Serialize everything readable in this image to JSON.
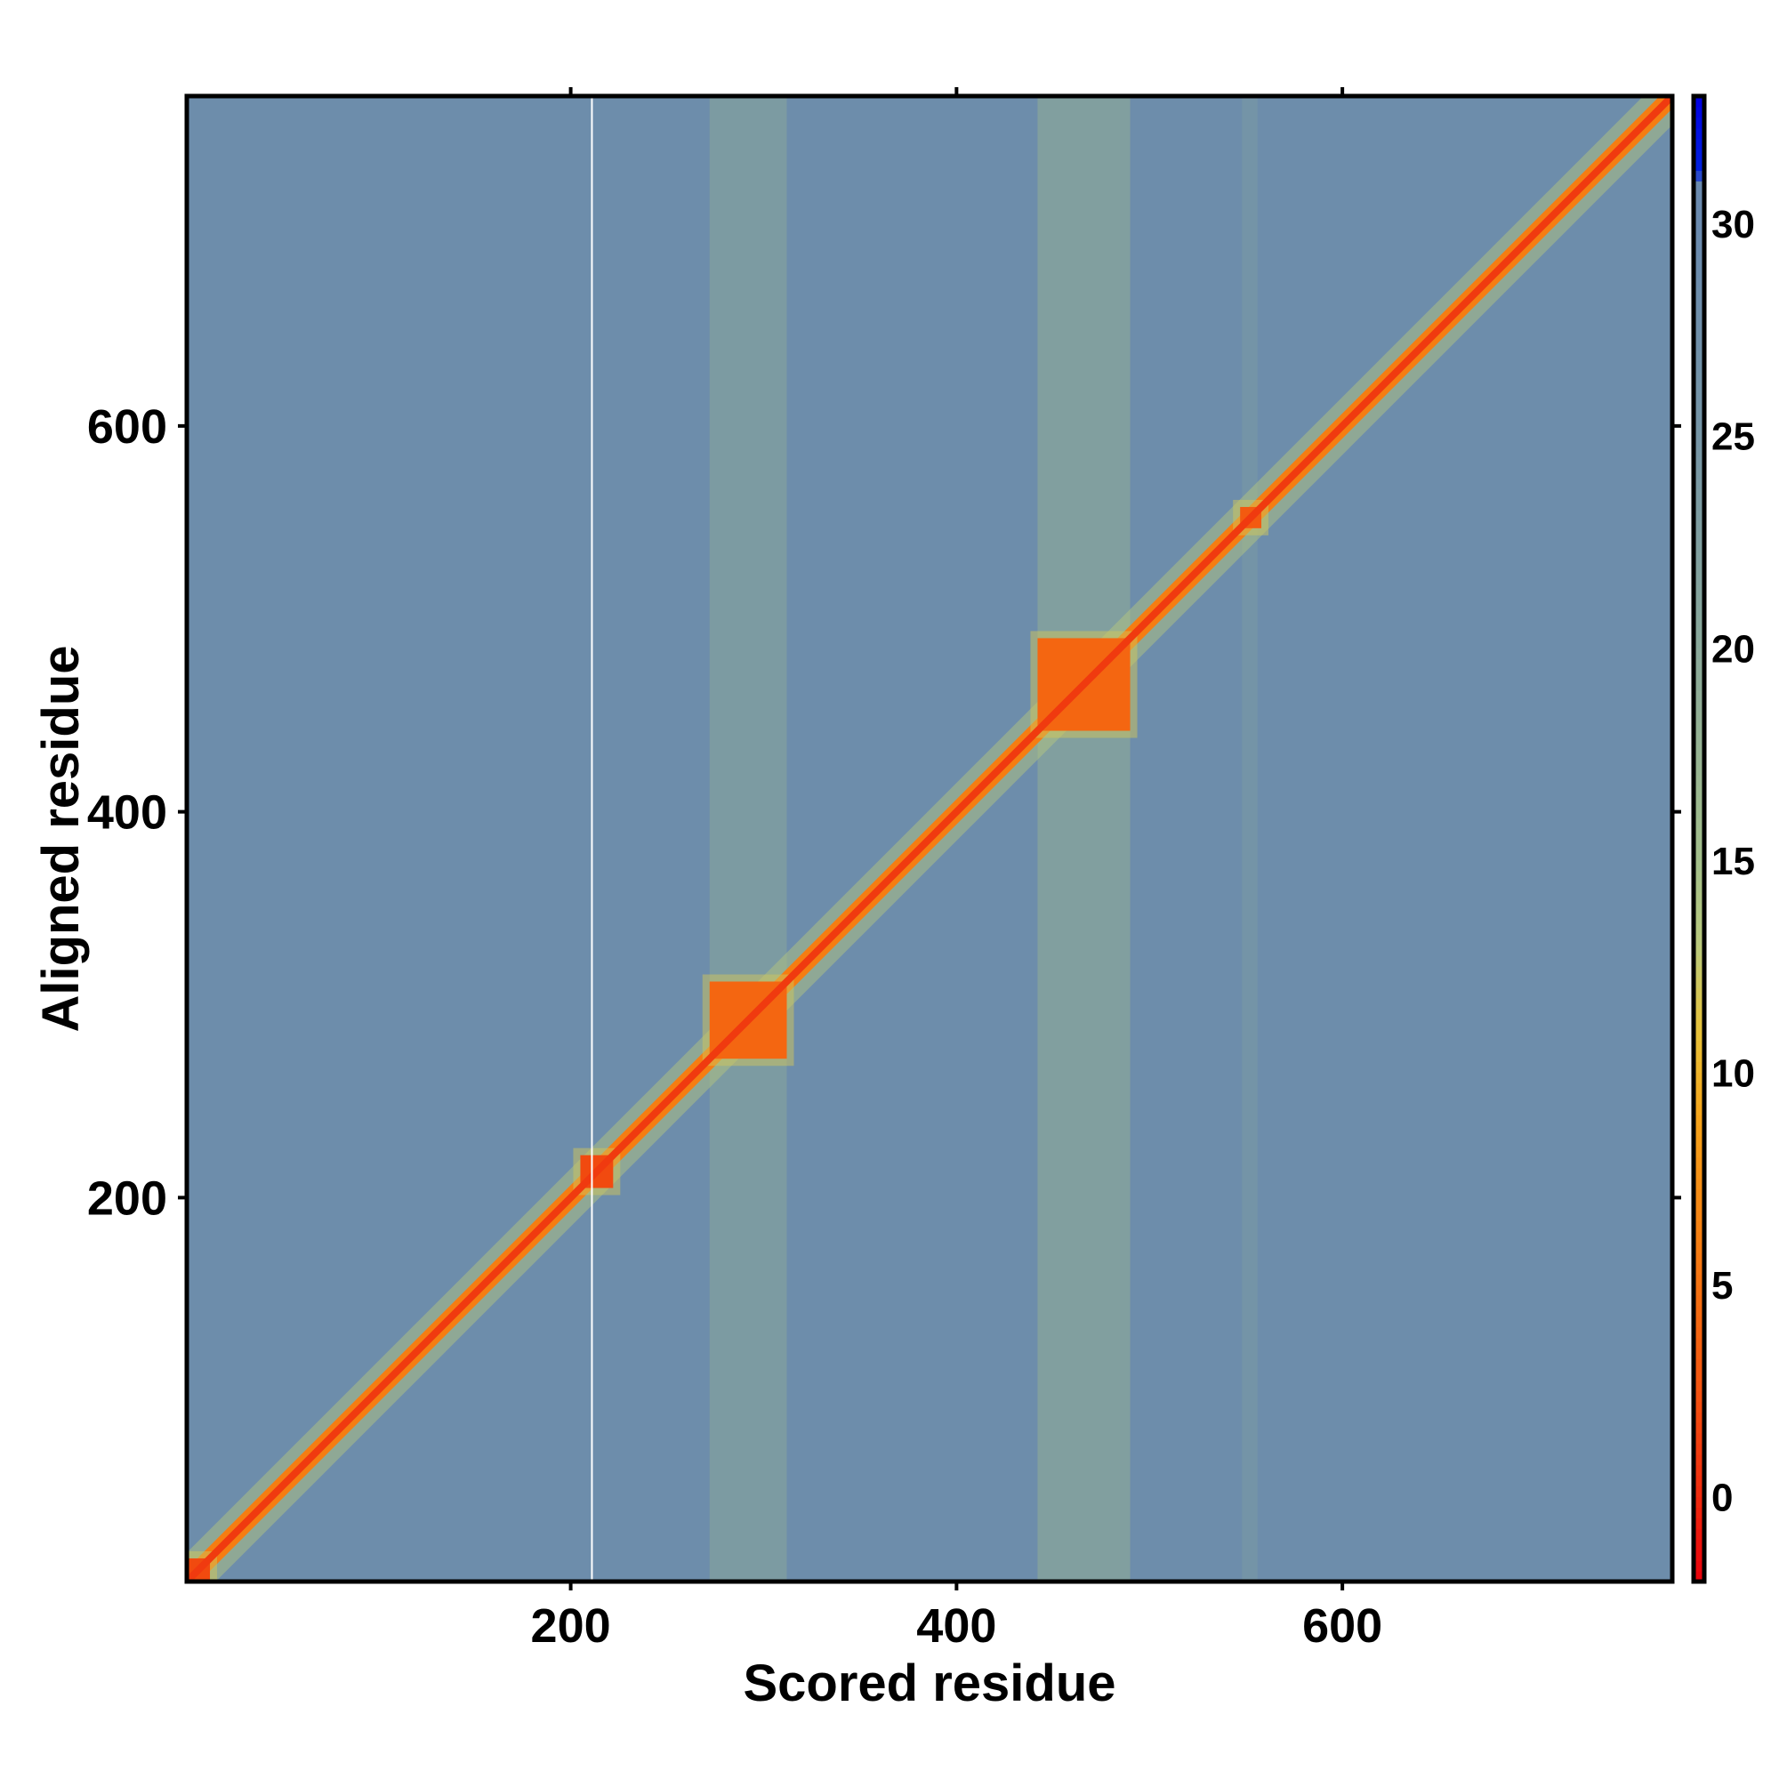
{
  "chart_data": {
    "type": "heatmap",
    "title": "",
    "xlabel": "Scored residue",
    "ylabel": "Aligned residue",
    "xlim": [
      1,
      771
    ],
    "ylim": [
      1,
      771
    ],
    "xticks": [
      200,
      400,
      600
    ],
    "yticks": [
      200,
      400,
      600
    ],
    "colorbar": {
      "range": [
        -2,
        33
      ],
      "ticks": [
        0,
        5,
        10,
        15,
        20,
        25,
        30
      ],
      "stops": [
        {
          "value": -2,
          "color": "#e8000b"
        },
        {
          "value": 0,
          "color": "#ee2a0e"
        },
        {
          "value": 3,
          "color": "#f35a10"
        },
        {
          "value": 6,
          "color": "#f57d12"
        },
        {
          "value": 9,
          "color": "#f5a41a"
        },
        {
          "value": 11,
          "color": "#e6c23a"
        },
        {
          "value": 13,
          "color": "#b9c97c"
        },
        {
          "value": 15,
          "color": "#a3bf8b"
        },
        {
          "value": 20,
          "color": "#8aa89a"
        },
        {
          "value": 25,
          "color": "#7595a5"
        },
        {
          "value": 30,
          "color": "#6a8aae"
        },
        {
          "value": 31,
          "color": "#6a8aae"
        },
        {
          "value": 31.2,
          "color": "#0022dd"
        },
        {
          "value": 33,
          "color": "#0000e0"
        }
      ]
    },
    "background_value": 28.5,
    "diagonal": {
      "start": 1,
      "end": 771,
      "value": 1
    },
    "domain_blocks": [
      {
        "range": [
          1,
          13
        ],
        "value": 2
      },
      {
        "range": [
          205,
          222
        ],
        "value": 2
      },
      {
        "range": [
          272,
          312
        ],
        "value": 4
      },
      {
        "range": [
          442,
          490
        ],
        "value": 4
      },
      {
        "range": [
          547,
          558
        ],
        "value": 3
      }
    ],
    "low_error_bands": [
      {
        "range": [
          272,
          312
        ],
        "value": 19
      },
      {
        "range": [
          442,
          490
        ],
        "value": 17
      },
      {
        "range": [
          548,
          556
        ],
        "value": 23
      }
    ],
    "missing_column": 211
  }
}
